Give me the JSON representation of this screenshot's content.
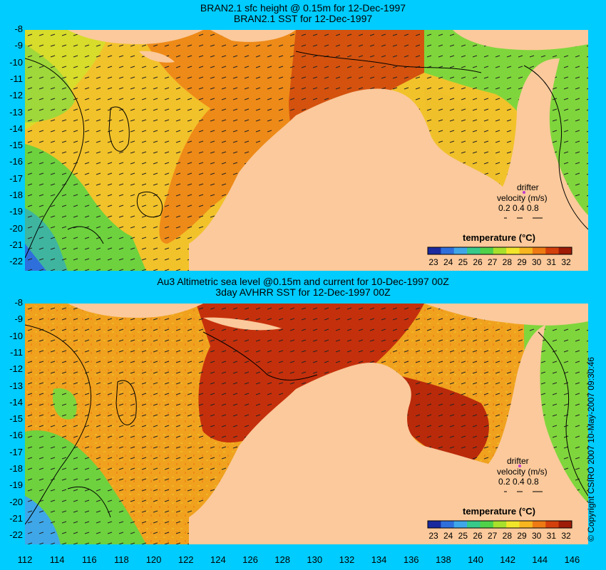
{
  "top_panel": {
    "title_line1": "BRAN2.1 sfc height @ 0.15m for 12-Dec-1997",
    "title_line2": "BRAN2.1 SST for 12-Dec-1997"
  },
  "bottom_panel": {
    "title_line1": "Au3 Altimetric sea level  @0.15m and current for 10-Dec-1997 00Z",
    "title_line2": "3day AVHRR SST for 12-Dec-1997 00Z"
  },
  "axes": {
    "lat_ticks": [
      "-8",
      "-9",
      "-10",
      "-11",
      "-12",
      "-13",
      "-14",
      "-15",
      "-16",
      "-17",
      "-18",
      "-19",
      "-20",
      "-21",
      "-22"
    ],
    "lon_ticks": [
      "112",
      "114",
      "116",
      "118",
      "120",
      "122",
      "124",
      "126",
      "128",
      "130",
      "132",
      "134",
      "136",
      "138",
      "140",
      "142",
      "144",
      "146"
    ],
    "lat_range": [
      -8,
      -22.5
    ],
    "lon_range": [
      112,
      147
    ]
  },
  "legend": {
    "title": "temperature (°C)",
    "ticks": [
      "23",
      "24",
      "25",
      "26",
      "27",
      "28",
      "29",
      "30",
      "31",
      "32"
    ],
    "colors": [
      "#1a2a9e",
      "#2f6fdc",
      "#3fa7e8",
      "#36c98a",
      "#4fd24a",
      "#a8e02c",
      "#f2e62a",
      "#f7b61f",
      "#ee7a13",
      "#d4400c",
      "#9e1b07"
    ]
  },
  "drifter": {
    "label1": "drifter",
    "label2": "velocity (m/s)",
    "speeds": "0.2 0.4 0.8"
  },
  "copyright": "© Copyright CSIRO 2007  10-May-2007 09:30:46",
  "colors": {
    "background": "#00ccff",
    "land": "#fbc99b",
    "warm": "#d4520e",
    "hot": "#a81d08",
    "mid": "#f0a21e",
    "cool": "#5ed23c"
  }
}
